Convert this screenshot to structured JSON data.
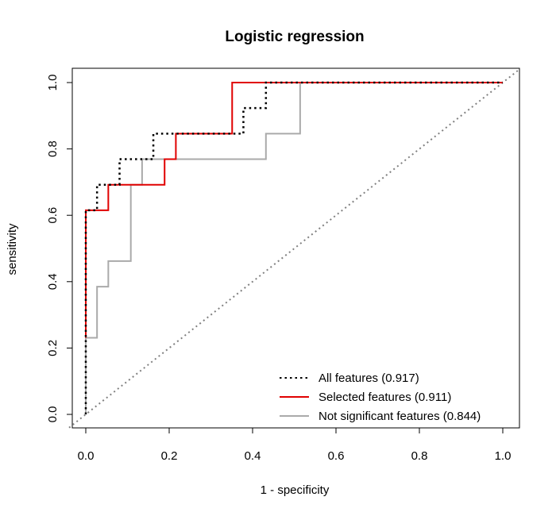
{
  "chart_data": {
    "type": "line",
    "title": "Logistic regression",
    "xlabel": "1 - specificity",
    "ylabel": "sensitivity",
    "xlim": [
      0,
      1
    ],
    "ylim": [
      0,
      1
    ],
    "x_ticks": [
      "0.0",
      "0.2",
      "0.4",
      "0.6",
      "0.8",
      "1.0"
    ],
    "y_ticks": [
      "0.0",
      "0.2",
      "0.4",
      "0.6",
      "0.8",
      "1.0"
    ],
    "grid": false,
    "legend_position": "bottom-right",
    "reference_line": {
      "style": "dotted",
      "color": "#808080",
      "from": [
        0,
        0
      ],
      "to": [
        1,
        1
      ]
    },
    "series": [
      {
        "name": "All features (0.917)",
        "color": "#000000",
        "style": "dotted",
        "x": [
          0,
          0,
          0.027,
          0.027,
          0.081,
          0.081,
          0.162,
          0.162,
          0.378,
          0.378,
          0.432,
          0.432,
          1
        ],
        "y": [
          0,
          0.615,
          0.615,
          0.692,
          0.692,
          0.769,
          0.769,
          0.846,
          0.846,
          0.923,
          0.923,
          1.0,
          1.0
        ]
      },
      {
        "name": "Selected features (0.911)",
        "color": "#e00000",
        "style": "solid",
        "x": [
          0,
          0,
          0.054,
          0.054,
          0.189,
          0.189,
          0.216,
          0.216,
          0.351,
          0.351,
          1
        ],
        "y": [
          0.231,
          0.615,
          0.615,
          0.692,
          0.692,
          0.769,
          0.769,
          0.846,
          0.846,
          1.0,
          1.0
        ]
      },
      {
        "name": "Not significant features (0.844)",
        "color": "#aaaaaa",
        "style": "solid",
        "x": [
          0,
          0,
          0.027,
          0.027,
          0.054,
          0.054,
          0.108,
          0.108,
          0.135,
          0.135,
          0.432,
          0.432,
          0.514,
          0.514,
          1
        ],
        "y": [
          0,
          0.231,
          0.231,
          0.385,
          0.385,
          0.462,
          0.462,
          0.692,
          0.692,
          0.769,
          0.769,
          0.846,
          0.846,
          1.0,
          1.0
        ]
      }
    ]
  }
}
